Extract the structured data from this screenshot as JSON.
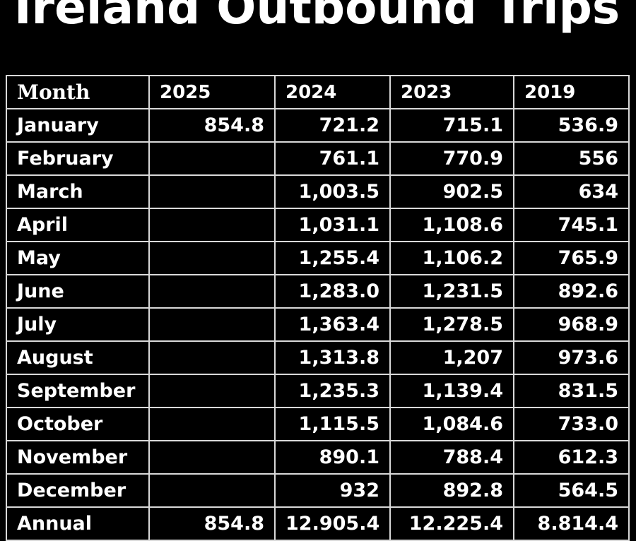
{
  "page": {
    "title": "Ireland Outbound Trips"
  },
  "chart_data": {
    "type": "table",
    "title": "Ireland Outbound Trips",
    "columns": [
      "Month",
      "2025",
      "2024",
      "2023",
      "2019"
    ],
    "rows": [
      [
        "January",
        "854.8",
        "721.2",
        "715.1",
        "536.9"
      ],
      [
        "February",
        "",
        "761.1",
        "770.9",
        "556"
      ],
      [
        "March",
        "",
        "1,003.5",
        "902.5",
        "634"
      ],
      [
        "April",
        "",
        "1,031.1",
        "1,108.6",
        "745.1"
      ],
      [
        "May",
        "",
        "1,255.4",
        "1,106.2",
        "765.9"
      ],
      [
        "June",
        "",
        "1,283.0",
        "1,231.5",
        "892.6"
      ],
      [
        "July",
        "",
        "1,363.4",
        "1,278.5",
        "968.9"
      ],
      [
        "August",
        "",
        "1,313.8",
        "1,207",
        "973.6"
      ],
      [
        "September",
        "",
        "1,235.3",
        "1,139.4",
        "831.5"
      ],
      [
        "October",
        "",
        "1,115.5",
        "1,084.6",
        "733.0"
      ],
      [
        "November",
        "",
        "890.1",
        "788.4",
        "612.3"
      ],
      [
        "December",
        "",
        "932",
        "892.8",
        "564.5"
      ],
      [
        "Annual",
        "854.8",
        "12.905.4",
        "12.225.4",
        "8.814.4"
      ]
    ]
  }
}
